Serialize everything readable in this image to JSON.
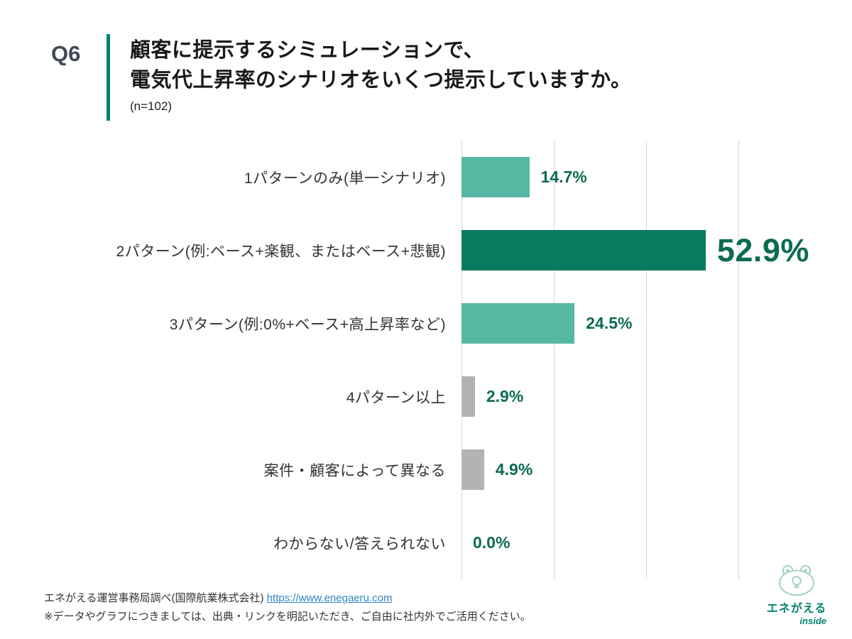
{
  "header": {
    "q_label": "Q6",
    "title_lines": [
      "顧客に提示するシミュレーションで、",
      "電気代上昇率のシナリオをいくつ提示していますか。"
    ],
    "sample_size": "(n=102)"
  },
  "chart_data": {
    "type": "bar",
    "orientation": "horizontal",
    "title": "顧客に提示するシミュレーションで、電気代上昇率のシナリオをいくつ提示していますか。",
    "n_label": "(n=102)",
    "categories": [
      "1パターンのみ(単一シナリオ)",
      "2パターン(例:ベース+楽観、またはベース+悲観)",
      "3パターン(例:0%+ベース+高上昇率など)",
      "4パターン以上",
      "案件・顧客によって異なる",
      "わからない/答えられない"
    ],
    "values": [
      14.7,
      52.9,
      24.5,
      2.9,
      4.9,
      0.0
    ],
    "value_labels": [
      "14.7%",
      "52.9%",
      "24.5%",
      "2.9%",
      "4.9%",
      "0.0%"
    ],
    "bar_colors": [
      "#56b8a3",
      "#0a7a60",
      "#56b8a3",
      "#b3b3b3",
      "#b3b3b3",
      "#b3b3b3"
    ],
    "highlight_index": 1,
    "xlim": [
      0,
      60
    ],
    "gridline_values": [
      0,
      20,
      40,
      60
    ],
    "value_label_color": "#0d6b53",
    "grid_color": "#d9d9d9",
    "legend": "none",
    "grid": "vertical-lines"
  },
  "footer": {
    "source_prefix": "エネがえる運営事務局調べ(国際航業株式会社) ",
    "source_link": "https://www.enegaeru.com",
    "note": "※データやグラフにつきましては、出典・リンクを明記いただき、ご自由に社内外でご活用ください。"
  },
  "logo": {
    "brand": "エネがえる",
    "sub": "inside"
  }
}
